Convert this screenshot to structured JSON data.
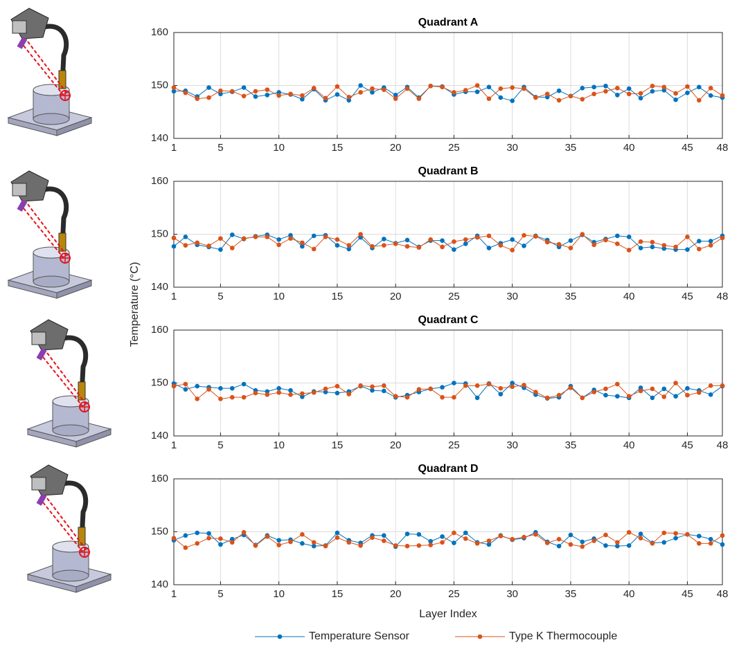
{
  "chart_data": [
    {
      "type": "line",
      "title": "Quadrant A",
      "ylabel": "Temperature (°C)",
      "x": [
        1,
        2,
        3,
        4,
        5,
        6,
        7,
        8,
        9,
        10,
        11,
        12,
        13,
        14,
        15,
        16,
        17,
        18,
        19,
        20,
        21,
        22,
        23,
        24,
        25,
        26,
        27,
        28,
        29,
        30,
        31,
        32,
        33,
        34,
        35,
        36,
        37,
        38,
        39,
        40,
        41,
        42,
        43,
        44,
        45,
        46,
        47,
        48
      ],
      "series": [
        {
          "name": "Temperature Sensor",
          "color": "#0072BD",
          "values": [
            148.9,
            149.0,
            147.9,
            149.6,
            148.4,
            148.8,
            149.6,
            147.9,
            148.2,
            148.7,
            148.3,
            147.4,
            149.3,
            147.2,
            148.3,
            147.2,
            150.0,
            148.7,
            149.6,
            148.2,
            149.7,
            147.7,
            149.9,
            149.8,
            148.3,
            148.8,
            148.8,
            149.7,
            147.7,
            147.1,
            149.7,
            147.8,
            147.8,
            149.0,
            148.0,
            149.5,
            149.7,
            149.9,
            148.2,
            149.4,
            147.6,
            148.9,
            149.1,
            147.3,
            148.6,
            149.7,
            148.1,
            147.7
          ]
        },
        {
          "name": "Type K Thermocouple",
          "color": "#D95319",
          "values": [
            149.6,
            148.6,
            147.5,
            147.7,
            149.0,
            148.9,
            148.0,
            148.9,
            149.2,
            148.1,
            148.4,
            148.1,
            149.5,
            147.6,
            149.8,
            147.8,
            148.7,
            149.4,
            149.2,
            147.5,
            149.4,
            147.5,
            149.9,
            149.7,
            148.7,
            149.1,
            150.0,
            147.5,
            149.4,
            149.6,
            149.4,
            147.7,
            148.4,
            147.2,
            148.0,
            147.4,
            148.4,
            148.9,
            149.5,
            148.4,
            148.5,
            149.9,
            149.7,
            148.5,
            149.8,
            147.2,
            149.5,
            148.1
          ]
        }
      ],
      "xlim": [
        1,
        48
      ],
      "xticks": [
        1,
        5,
        10,
        15,
        20,
        25,
        30,
        35,
        40,
        45,
        48
      ],
      "ylim": [
        140,
        160
      ],
      "yticks": [
        140,
        150,
        160
      ],
      "grid": true
    },
    {
      "type": "line",
      "title": "Quadrant B",
      "x": [
        1,
        2,
        3,
        4,
        5,
        6,
        7,
        8,
        9,
        10,
        11,
        12,
        13,
        14,
        15,
        16,
        17,
        18,
        19,
        20,
        21,
        22,
        23,
        24,
        25,
        26,
        27,
        28,
        29,
        30,
        31,
        32,
        33,
        34,
        35,
        36,
        37,
        38,
        39,
        40,
        41,
        42,
        43,
        44,
        45,
        46,
        47,
        48
      ],
      "series": [
        {
          "name": "Temperature Sensor",
          "color": "#0072BD",
          "values": [
            147.7,
            149.5,
            148.0,
            147.6,
            147.1,
            149.9,
            149.1,
            149.6,
            149.9,
            149.0,
            149.8,
            147.7,
            149.7,
            149.8,
            147.9,
            147.2,
            149.4,
            147.4,
            149.1,
            148.3,
            148.9,
            147.6,
            148.8,
            148.8,
            147.1,
            148.2,
            149.7,
            147.4,
            148.3,
            149.0,
            147.8,
            149.7,
            148.9,
            147.6,
            148.8,
            149.9,
            148.5,
            149.1,
            149.7,
            149.5,
            147.4,
            147.6,
            147.3,
            147.1,
            147.1,
            148.7,
            148.7,
            149.7
          ]
        },
        {
          "name": "Type K Thermocouple",
          "color": "#D95319",
          "values": [
            149.3,
            147.9,
            148.4,
            147.8,
            149.2,
            147.4,
            149.2,
            149.5,
            149.5,
            148.0,
            149.2,
            148.4,
            147.2,
            149.5,
            149.0,
            147.9,
            150.0,
            147.7,
            147.9,
            148.2,
            147.7,
            147.5,
            149.0,
            147.6,
            148.6,
            149.0,
            149.4,
            149.7,
            147.9,
            147.0,
            149.8,
            149.6,
            148.5,
            148.1,
            147.4,
            150.0,
            148.0,
            148.9,
            148.2,
            147.0,
            148.6,
            148.5,
            147.9,
            147.6,
            149.5,
            147.2,
            147.9,
            149.3
          ]
        }
      ],
      "xlim": [
        1,
        48
      ],
      "xticks": [
        1,
        5,
        10,
        15,
        20,
        25,
        30,
        35,
        40,
        45,
        48
      ],
      "ylim": [
        140,
        160
      ],
      "yticks": [
        140,
        150,
        160
      ],
      "grid": true
    },
    {
      "type": "line",
      "title": "Quadrant C",
      "x": [
        1,
        2,
        3,
        4,
        5,
        6,
        7,
        8,
        9,
        10,
        11,
        12,
        13,
        14,
        15,
        16,
        17,
        18,
        19,
        20,
        21,
        22,
        23,
        24,
        25,
        26,
        27,
        28,
        29,
        30,
        31,
        32,
        33,
        34,
        35,
        36,
        37,
        38,
        39,
        40,
        41,
        42,
        43,
        44,
        45,
        46,
        47,
        48
      ],
      "series": [
        {
          "name": "Temperature Sensor",
          "color": "#0072BD",
          "values": [
            149.9,
            148.8,
            149.4,
            149.2,
            149.0,
            149.0,
            149.8,
            148.6,
            148.4,
            149.0,
            148.6,
            147.4,
            148.4,
            148.3,
            148.1,
            148.4,
            149.4,
            148.6,
            148.5,
            147.3,
            147.7,
            148.3,
            148.9,
            149.2,
            150.0,
            149.9,
            147.2,
            149.9,
            147.9,
            150.0,
            149.1,
            147.8,
            147.1,
            147.3,
            149.4,
            147.2,
            148.7,
            147.7,
            147.5,
            147.2,
            149.1,
            147.2,
            148.9,
            147.5,
            149.0,
            148.6,
            147.8,
            149.4
          ]
        },
        {
          "name": "Type K Thermocouple",
          "color": "#D95319",
          "values": [
            149.4,
            149.8,
            147.0,
            148.8,
            147.0,
            147.3,
            147.3,
            148.1,
            147.8,
            148.2,
            147.8,
            148.0,
            148.2,
            148.9,
            149.4,
            147.9,
            149.5,
            149.3,
            149.5,
            147.5,
            147.3,
            148.8,
            148.9,
            147.3,
            147.3,
            149.5,
            149.5,
            149.8,
            149.0,
            149.3,
            149.6,
            148.3,
            147.2,
            147.7,
            149.1,
            147.2,
            148.3,
            148.9,
            149.8,
            147.5,
            148.5,
            148.9,
            147.4,
            150.0,
            147.7,
            148.2,
            149.5,
            149.5
          ]
        }
      ],
      "xlim": [
        1,
        48
      ],
      "xticks": [
        1,
        5,
        10,
        15,
        20,
        25,
        30,
        35,
        40,
        45,
        48
      ],
      "ylim": [
        140,
        160
      ],
      "yticks": [
        140,
        150,
        160
      ],
      "grid": true
    },
    {
      "type": "line",
      "title": "Quadrant D",
      "xlabel": "Layer Index",
      "x": [
        1,
        2,
        3,
        4,
        5,
        6,
        7,
        8,
        9,
        10,
        11,
        12,
        13,
        14,
        15,
        16,
        17,
        18,
        19,
        20,
        21,
        22,
        23,
        24,
        25,
        26,
        27,
        28,
        29,
        30,
        31,
        32,
        33,
        34,
        35,
        36,
        37,
        38,
        39,
        40,
        41,
        42,
        43,
        44,
        45,
        46,
        47,
        48
      ],
      "series": [
        {
          "name": "Temperature Sensor",
          "color": "#0072BD",
          "values": [
            148.4,
            149.3,
            149.8,
            149.7,
            147.6,
            148.6,
            149.4,
            147.5,
            149.3,
            148.4,
            148.5,
            147.8,
            147.3,
            147.4,
            149.8,
            148.4,
            147.9,
            149.3,
            149.3,
            147.2,
            149.6,
            149.5,
            148.2,
            149.1,
            147.9,
            149.8,
            148.0,
            147.6,
            149.3,
            148.5,
            148.8,
            149.9,
            148.1,
            147.3,
            149.4,
            148.1,
            148.7,
            147.4,
            147.3,
            147.4,
            149.6,
            147.9,
            148.0,
            148.8,
            149.5,
            149.2,
            148.6,
            147.6
          ]
        },
        {
          "name": "Type K Thermocouple",
          "color": "#D95319",
          "values": [
            148.8,
            147.0,
            147.8,
            148.8,
            148.7,
            148.0,
            149.9,
            147.4,
            149.1,
            147.5,
            148.1,
            149.5,
            148.0,
            147.3,
            148.9,
            148.0,
            147.4,
            148.9,
            148.3,
            147.4,
            147.3,
            147.4,
            147.5,
            148.0,
            149.8,
            148.7,
            147.8,
            148.3,
            149.2,
            148.6,
            149.0,
            149.5,
            147.9,
            148.6,
            147.6,
            147.2,
            148.3,
            149.4,
            148.0,
            149.9,
            148.8,
            147.8,
            149.8,
            149.7,
            149.5,
            147.8,
            147.8,
            149.3
          ]
        }
      ],
      "xlim": [
        1,
        48
      ],
      "xticks": [
        1,
        5,
        10,
        15,
        20,
        25,
        30,
        35,
        40,
        45,
        48
      ],
      "ylim": [
        140,
        160
      ],
      "yticks": [
        140,
        150,
        160
      ],
      "grid": true
    }
  ]
}
